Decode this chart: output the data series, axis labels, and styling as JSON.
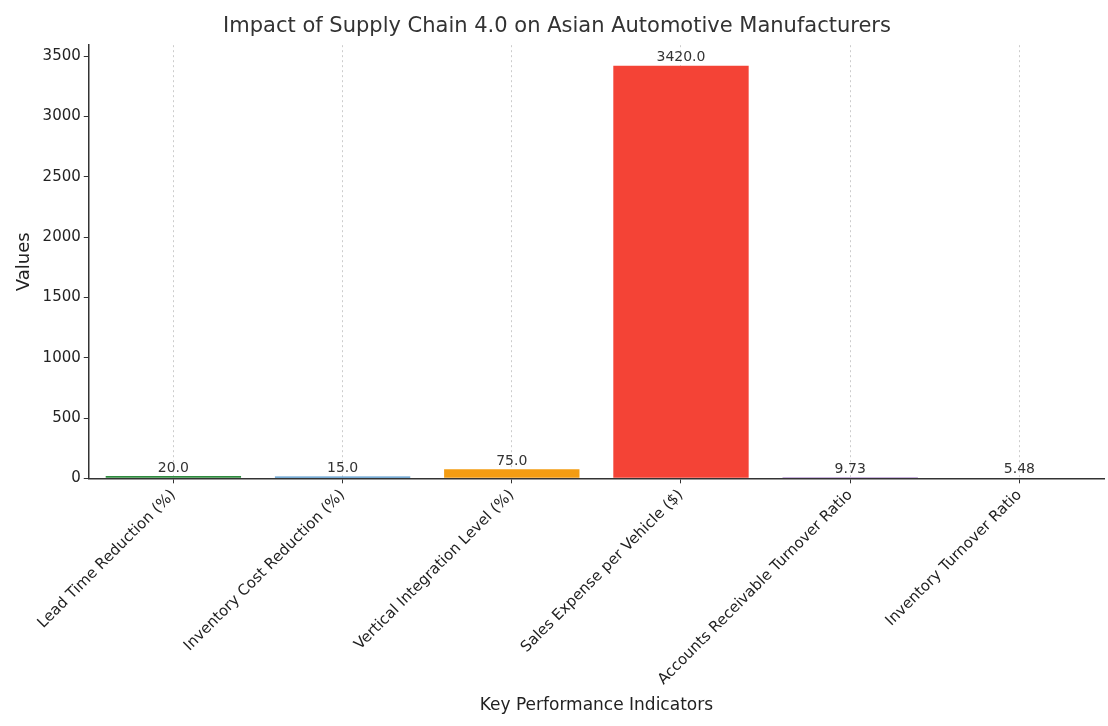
{
  "chart_data": {
    "type": "bar",
    "title": "Impact of Supply Chain 4.0 on Asian Automotive Manufacturers",
    "xlabel": "Key Performance Indicators",
    "ylabel": "Values",
    "categories": [
      "Lead Time Reduction (%)",
      "Inventory Cost Reduction (%)",
      "Vertical Integration Level (%)",
      "Sales Expense per Vehicle ($)",
      "Accounts Receivable Turnover Ratio",
      "Inventory Turnover Ratio"
    ],
    "values": [
      20.0,
      15.0,
      75.0,
      3420.0,
      9.73,
      5.48
    ],
    "colors": [
      "#2e8b3e",
      "#4a90c8",
      "#f39c12",
      "#f44336",
      "#9467bd",
      "#8c564b"
    ],
    "value_labels": [
      "20.0",
      "15.0",
      "75.0",
      "3420.0",
      "9.73",
      "5.48"
    ],
    "ylim": [
      0,
      3591
    ],
    "yticks": [
      0,
      500,
      1000,
      1500,
      2000,
      2500,
      3000,
      3500
    ],
    "grid": "x",
    "legend": false
  }
}
